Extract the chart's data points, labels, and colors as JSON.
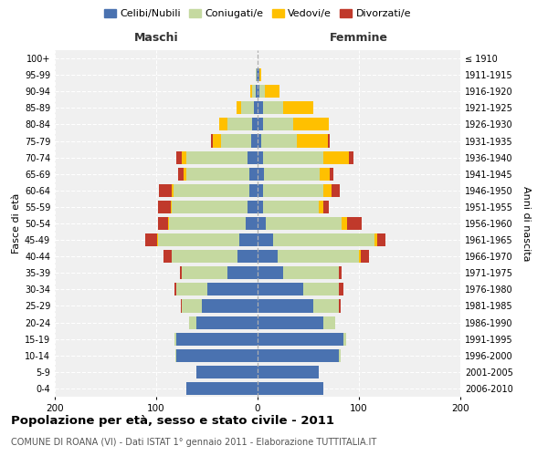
{
  "age_groups": [
    "0-4",
    "5-9",
    "10-14",
    "15-19",
    "20-24",
    "25-29",
    "30-34",
    "35-39",
    "40-44",
    "45-49",
    "50-54",
    "55-59",
    "60-64",
    "65-69",
    "70-74",
    "75-79",
    "80-84",
    "85-89",
    "90-94",
    "95-99",
    "100+"
  ],
  "birth_years": [
    "2006-2010",
    "2001-2005",
    "1996-2000",
    "1991-1995",
    "1986-1990",
    "1981-1985",
    "1976-1980",
    "1971-1975",
    "1966-1970",
    "1961-1965",
    "1956-1960",
    "1951-1955",
    "1946-1950",
    "1941-1945",
    "1936-1940",
    "1931-1935",
    "1926-1930",
    "1921-1925",
    "1916-1920",
    "1911-1915",
    "≤ 1910"
  ],
  "males": {
    "celibe": [
      70,
      60,
      80,
      80,
      60,
      55,
      50,
      30,
      20,
      18,
      12,
      10,
      8,
      8,
      10,
      6,
      5,
      4,
      2,
      1,
      0
    ],
    "coniugato": [
      0,
      0,
      1,
      2,
      8,
      20,
      30,
      45,
      65,
      80,
      75,
      75,
      75,
      62,
      60,
      30,
      25,
      12,
      3,
      1,
      0
    ],
    "vedovo": [
      0,
      0,
      0,
      0,
      0,
      0,
      0,
      0,
      0,
      1,
      1,
      1,
      2,
      3,
      5,
      8,
      8,
      5,
      2,
      0,
      0
    ],
    "divorziato": [
      0,
      0,
      0,
      0,
      0,
      1,
      2,
      2,
      8,
      12,
      10,
      12,
      12,
      5,
      5,
      2,
      0,
      0,
      0,
      0,
      0
    ]
  },
  "females": {
    "nubile": [
      65,
      60,
      80,
      85,
      65,
      55,
      45,
      25,
      20,
      15,
      8,
      5,
      5,
      6,
      5,
      4,
      5,
      5,
      2,
      2,
      0
    ],
    "coniugata": [
      0,
      0,
      2,
      2,
      12,
      25,
      35,
      55,
      80,
      100,
      75,
      55,
      60,
      55,
      60,
      35,
      30,
      20,
      5,
      0,
      0
    ],
    "vedova": [
      0,
      0,
      0,
      0,
      0,
      0,
      0,
      0,
      2,
      3,
      5,
      5,
      8,
      10,
      25,
      30,
      35,
      30,
      15,
      2,
      0
    ],
    "divorziata": [
      0,
      0,
      0,
      0,
      0,
      2,
      5,
      3,
      8,
      8,
      15,
      5,
      8,
      4,
      5,
      2,
      0,
      0,
      0,
      0,
      0
    ]
  },
  "colors": {
    "celibe": "#4a72b0",
    "coniugato": "#c5d9a0",
    "vedovo": "#ffc000",
    "divorziato": "#c0392b"
  },
  "title": "Popolazione per età, sesso e stato civile - 2011",
  "subtitle": "COMUNE DI ROANA (VI) - Dati ISTAT 1° gennaio 2011 - Elaborazione TUTTITALIA.IT",
  "xlabel_left": "Maschi",
  "xlabel_right": "Femmine",
  "ylabel_left": "Fasce di età",
  "ylabel_right": "Anni di nascita",
  "xlim": 200,
  "legend_labels": [
    "Celibi/Nubili",
    "Coniugati/e",
    "Vedovi/e",
    "Divorzati/e"
  ],
  "bg_color": "#f0f0f0"
}
